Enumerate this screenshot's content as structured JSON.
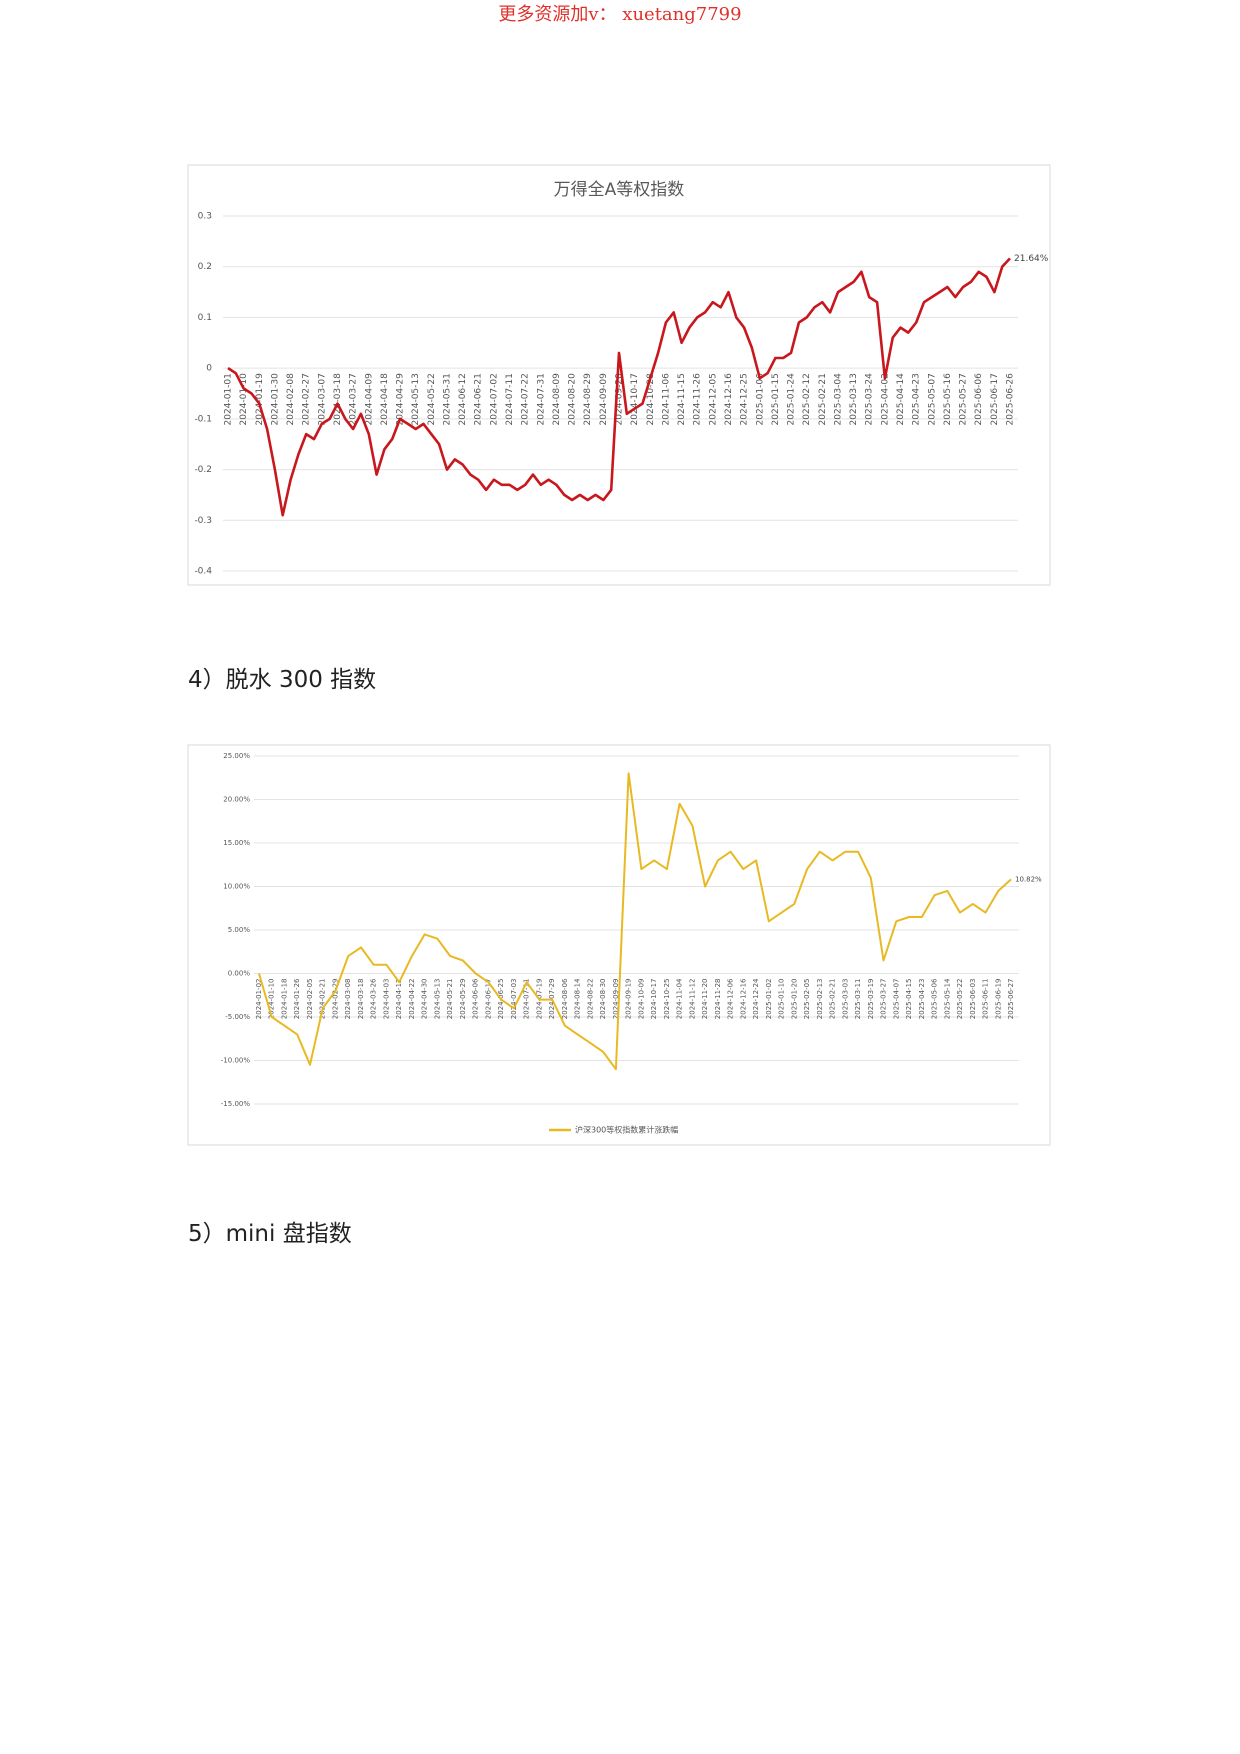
{
  "watermark": "更多资源加v： xuetang7799",
  "headings": [
    "4）脱水 300 指数",
    "5）mini 盘指数"
  ],
  "chart_data": [
    {
      "type": "line",
      "title": "万得全A等权指数",
      "color": "#c8171d",
      "grid": true,
      "ylim": [
        -0.4,
        0.3
      ],
      "yticks": [
        0.3,
        0.2,
        0.1,
        0,
        -0.1,
        -0.2,
        -0.3,
        -0.4
      ],
      "categories": [
        "2024-01-01",
        null,
        "2024-01-10",
        null,
        "2024-01-19",
        null,
        "2024-01-30",
        null,
        "2024-02-08",
        null,
        "2024-02-27",
        null,
        "2024-03-07",
        null,
        "2024-03-18",
        null,
        "2024-03-27",
        null,
        "2024-04-09",
        null,
        "2024-04-18",
        null,
        "2024-04-29",
        null,
        "2024-05-13",
        null,
        "2024-05-22",
        null,
        "2024-05-31",
        null,
        "2024-06-12",
        null,
        "2024-06-21",
        null,
        "2024-07-02",
        null,
        "2024-07-11",
        null,
        "2024-07-22",
        null,
        "2024-07-31",
        null,
        "2024-08-09",
        null,
        "2024-08-20",
        null,
        "2024-08-29",
        null,
        "2024-09-09",
        null,
        "2024-09-20",
        null,
        "2024-10-17",
        null,
        "2024-10-28",
        null,
        "2024-11-06",
        null,
        "2024-11-15",
        null,
        "2024-11-26",
        null,
        "2024-12-05",
        null,
        "2024-12-16",
        null,
        "2024-12-25",
        null,
        "2025-01-06",
        null,
        "2025-01-15",
        null,
        "2025-01-24",
        null,
        "2025-02-12",
        null,
        "2025-02-21",
        null,
        "2025-03-04",
        null,
        "2025-03-13",
        null,
        "2025-03-24",
        null,
        "2025-04-02",
        null,
        "2025-04-14",
        null,
        "2025-04-23",
        null,
        "2025-05-07",
        null,
        "2025-05-16",
        null,
        "2025-05-27",
        null,
        "2025-06-06",
        null,
        "2025-06-17",
        null,
        "2025-06-26"
      ],
      "values": [
        0,
        -0.01,
        -0.04,
        -0.05,
        -0.07,
        -0.12,
        -0.2,
        -0.29,
        -0.22,
        -0.17,
        -0.13,
        -0.14,
        -0.11,
        -0.1,
        -0.07,
        -0.1,
        -0.12,
        -0.09,
        -0.13,
        -0.21,
        -0.16,
        -0.14,
        -0.1,
        -0.11,
        -0.12,
        -0.11,
        -0.13,
        -0.15,
        -0.2,
        -0.18,
        -0.19,
        -0.21,
        -0.22,
        -0.24,
        -0.22,
        -0.23,
        -0.23,
        -0.24,
        -0.23,
        -0.21,
        -0.23,
        -0.22,
        -0.23,
        -0.25,
        -0.26,
        -0.25,
        -0.26,
        -0.25,
        -0.26,
        -0.24,
        0.03,
        -0.09,
        -0.08,
        -0.07,
        -0.02,
        0.03,
        0.09,
        0.11,
        0.05,
        0.08,
        0.1,
        0.11,
        0.13,
        0.12,
        0.15,
        0.1,
        0.08,
        0.04,
        -0.02,
        -0.01,
        0.02,
        0.02,
        0.03,
        0.09,
        0.1,
        0.12,
        0.13,
        0.11,
        0.15,
        0.16,
        0.17,
        0.19,
        0.14,
        0.13,
        -0.02,
        0.06,
        0.08,
        0.07,
        0.09,
        0.13,
        0.14,
        0.15,
        0.16,
        0.14,
        0.16,
        0.17,
        0.19,
        0.18,
        0.15,
        0.2,
        0.2164
      ],
      "value_labels": [
        null,
        null,
        null,
        null,
        null,
        null,
        null,
        null,
        null,
        null,
        null,
        null,
        null,
        null,
        null,
        null,
        null,
        null,
        null,
        null,
        null,
        null,
        null,
        null,
        null,
        null,
        null,
        null,
        null,
        null,
        null,
        null,
        null,
        null,
        null,
        null,
        null,
        null,
        null,
        null,
        null,
        null,
        null,
        null,
        null,
        null,
        null,
        null,
        null,
        null,
        null,
        null,
        null,
        null,
        null,
        null,
        null,
        null,
        null,
        null,
        null,
        null,
        null,
        null,
        null,
        null,
        null,
        null,
        null,
        null,
        null,
        null,
        null,
        null,
        null,
        null,
        null,
        null,
        null,
        null,
        null,
        null,
        null,
        null,
        null,
        null,
        null,
        null,
        null,
        null,
        null,
        null,
        null,
        null,
        null,
        null,
        null,
        null,
        null,
        null,
        "21.64%"
      ]
    },
    {
      "type": "line",
      "grid": true,
      "ylim": [
        -15,
        25
      ],
      "yticks": [
        {
          "value": 25,
          "label": "25.00%"
        },
        {
          "value": 20,
          "label": "20.00%"
        },
        {
          "value": 15,
          "label": "15.00%"
        },
        {
          "value": 10,
          "label": "10.00%"
        },
        {
          "value": 5,
          "label": "5.00%"
        },
        {
          "value": 0,
          "label": "0.00%"
        },
        {
          "value": -5,
          "label": "-5.00%"
        },
        {
          "value": -10,
          "label": "-10.00%"
        },
        {
          "value": -15,
          "label": "-15.00%"
        }
      ],
      "categories": [
        "2024-01-02",
        "2024-01-10",
        "2024-01-18",
        "2024-01-26",
        "2024-02-05",
        "2024-02-21",
        "2024-02-29",
        "2024-03-08",
        "2024-03-18",
        "2024-03-26",
        "2024-04-03",
        "2024-04-12",
        "2024-04-22",
        "2024-04-30",
        "2024-05-13",
        "2024-05-21",
        "2024-05-29",
        "2024-06-06",
        "2024-06-17",
        "2024-06-25",
        "2024-07-03",
        "2024-07-11",
        "2024-07-19",
        "2024-07-29",
        "2024-08-06",
        "2024-08-14",
        "2024-08-22",
        "2024-08-30",
        "2024-09-09",
        "2024-09-19",
        "2024-10-09",
        "2024-10-17",
        "2024-10-25",
        "2024-11-04",
        "2024-11-12",
        "2024-11-20",
        "2024-11-28",
        "2024-12-06",
        "2024-12-16",
        "2024-12-24",
        "2025-01-02",
        "2025-01-10",
        "2025-01-20",
        "2025-02-05",
        "2025-02-13",
        "2025-02-21",
        "2025-03-03",
        "2025-03-11",
        "2025-03-19",
        "2025-03-27",
        "2025-04-07",
        "2025-04-15",
        "2025-04-23",
        "2025-05-06",
        "2025-05-14",
        "2025-05-22",
        "2025-06-03",
        "2025-06-11",
        "2025-06-19",
        "2025-06-27"
      ],
      "series": [
        {
          "name": "沪深300等权指数累计涨跌幅",
          "color": "#e8b923",
          "values": [
            0,
            -5,
            -6,
            -7,
            -10.5,
            -4,
            -2,
            2,
            3,
            1,
            1,
            -1,
            2,
            4.5,
            4,
            2,
            1.5,
            0,
            -1,
            -3,
            -4,
            -1,
            -3,
            -3,
            -6,
            -7,
            -8,
            -9,
            -11,
            23,
            12,
            13,
            12,
            19.5,
            17,
            10,
            13,
            14,
            12,
            13,
            6,
            7,
            8,
            12,
            14,
            13,
            14,
            14,
            11,
            1.5,
            6,
            6.5,
            6.5,
            9,
            9.5,
            7,
            8,
            7,
            9.5,
            10.82
          ],
          "value_labels": [
            null,
            null,
            null,
            null,
            null,
            null,
            null,
            null,
            null,
            null,
            null,
            null,
            null,
            null,
            null,
            null,
            null,
            null,
            null,
            null,
            null,
            null,
            null,
            null,
            null,
            null,
            null,
            null,
            null,
            null,
            null,
            null,
            null,
            null,
            null,
            null,
            null,
            null,
            null,
            null,
            null,
            null,
            null,
            null,
            null,
            null,
            null,
            null,
            null,
            null,
            null,
            null,
            null,
            null,
            null,
            null,
            null,
            null,
            null,
            "10.82%"
          ]
        }
      ]
    }
  ]
}
